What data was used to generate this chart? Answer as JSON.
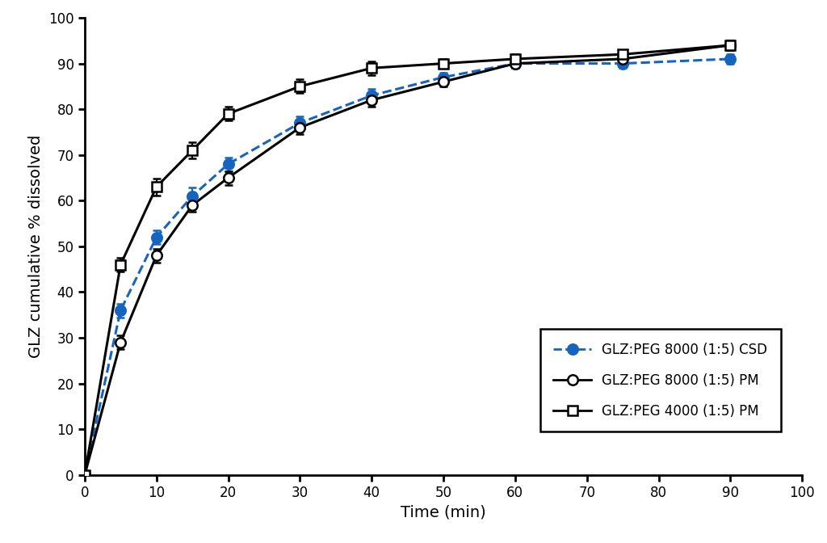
{
  "series": {
    "CSD": {
      "x": [
        0,
        5,
        10,
        15,
        20,
        30,
        40,
        50,
        60,
        75,
        90
      ],
      "y": [
        0,
        36,
        52,
        61,
        68,
        77,
        83,
        87,
        90,
        90,
        91
      ],
      "yerr": [
        0,
        1.5,
        1.5,
        1.8,
        1.5,
        1.5,
        1.5,
        1.0,
        1.0,
        1.0,
        1.0
      ],
      "color": "#1565c0",
      "linestyle": "--",
      "marker": "o",
      "markerfacecolor": "#1565c0",
      "label": "GLZ:PEG 8000 (1:5) CSD"
    },
    "PM8000": {
      "x": [
        0,
        5,
        10,
        15,
        20,
        30,
        40,
        50,
        60,
        75,
        90
      ],
      "y": [
        0,
        29,
        48,
        59,
        65,
        76,
        82,
        86,
        90,
        91,
        94
      ],
      "yerr": [
        0,
        1.5,
        1.5,
        1.5,
        1.5,
        1.5,
        1.5,
        1.0,
        1.0,
        1.0,
        1.0
      ],
      "color": "#000000",
      "linestyle": "-",
      "marker": "o",
      "markerfacecolor": "#ffffff",
      "label": "GLZ:PEG 8000 (1:5) PM"
    },
    "PM4000": {
      "x": [
        0,
        5,
        10,
        15,
        20,
        30,
        40,
        50,
        60,
        75,
        90
      ],
      "y": [
        0,
        46,
        63,
        71,
        79,
        85,
        89,
        90,
        91,
        92,
        94
      ],
      "yerr": [
        0,
        1.5,
        1.8,
        1.8,
        1.5,
        1.5,
        1.5,
        1.0,
        1.0,
        1.0,
        1.0
      ],
      "color": "#000000",
      "linestyle": "-",
      "marker": "s",
      "markerfacecolor": "#ffffff",
      "label": "GLZ:PEG 4000 (1:5) PM"
    }
  },
  "xlabel": "Time (min)",
  "ylabel": "GLZ cumulative % dissolved",
  "xlim": [
    0,
    100
  ],
  "ylim": [
    0,
    100
  ],
  "xticks": [
    0,
    10,
    20,
    30,
    40,
    50,
    60,
    70,
    80,
    90,
    100
  ],
  "yticks": [
    0,
    10,
    20,
    30,
    40,
    50,
    60,
    70,
    80,
    90,
    100
  ],
  "background_color": "#ffffff"
}
